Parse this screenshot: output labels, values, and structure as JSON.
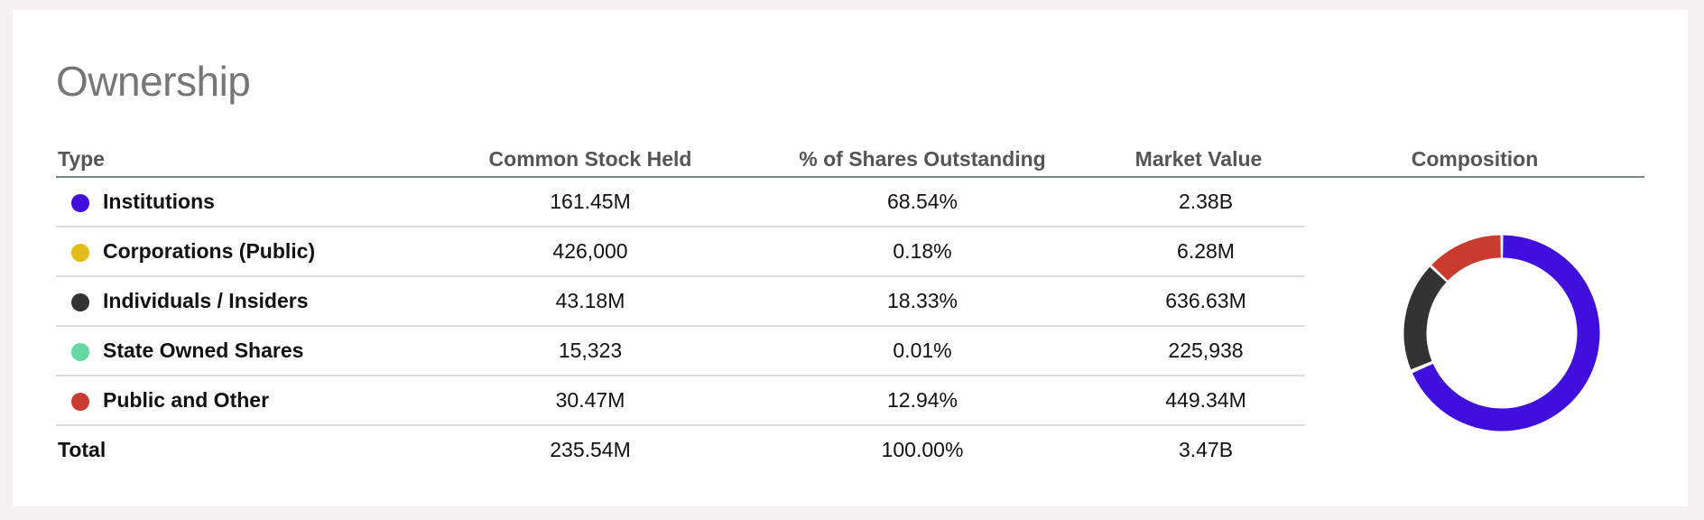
{
  "section": {
    "title": "Ownership"
  },
  "table": {
    "headers": {
      "type": "Type",
      "common_stock_held": "Common Stock Held",
      "pct_shares_outstanding": "% of Shares Outstanding",
      "market_value": "Market Value",
      "composition": "Composition"
    },
    "rows": [
      {
        "type": "Institutions",
        "color": "#410FDB",
        "common_stock_held": "161.45M",
        "pct_shares_outstanding": "68.54%",
        "market_value": "2.38B"
      },
      {
        "type": "Corporations (Public)",
        "color": "#E0BD1A",
        "common_stock_held": "426,000",
        "pct_shares_outstanding": "0.18%",
        "market_value": "6.28M"
      },
      {
        "type": "Individuals / Insiders",
        "color": "#333333",
        "common_stock_held": "43.18M",
        "pct_shares_outstanding": "18.33%",
        "market_value": "636.63M"
      },
      {
        "type": "State Owned Shares",
        "color": "#66D9A3",
        "common_stock_held": "15,323",
        "pct_shares_outstanding": "0.01%",
        "market_value": "225,938"
      },
      {
        "type": "Public and Other",
        "color": "#C93B2E",
        "common_stock_held": "30.47M",
        "pct_shares_outstanding": "12.94%",
        "market_value": "449.34M"
      }
    ],
    "total": {
      "type": "Total",
      "common_stock_held": "235.54M",
      "pct_shares_outstanding": "100.00%",
      "market_value": "3.47B"
    }
  },
  "composition_chart": {
    "type": "donut",
    "segments": [
      {
        "label": "Institutions",
        "value": 68.54,
        "color": "#410FDB"
      },
      {
        "label": "Corporations (Public)",
        "value": 0.18,
        "color": "#E0BD1A"
      },
      {
        "label": "Individuals / Insiders",
        "value": 18.33,
        "color": "#333333"
      },
      {
        "label": "State Owned Shares",
        "value": 0.01,
        "color": "#66D9A3"
      },
      {
        "label": "Public and Other",
        "value": 12.94,
        "color": "#C93B2E"
      }
    ]
  }
}
